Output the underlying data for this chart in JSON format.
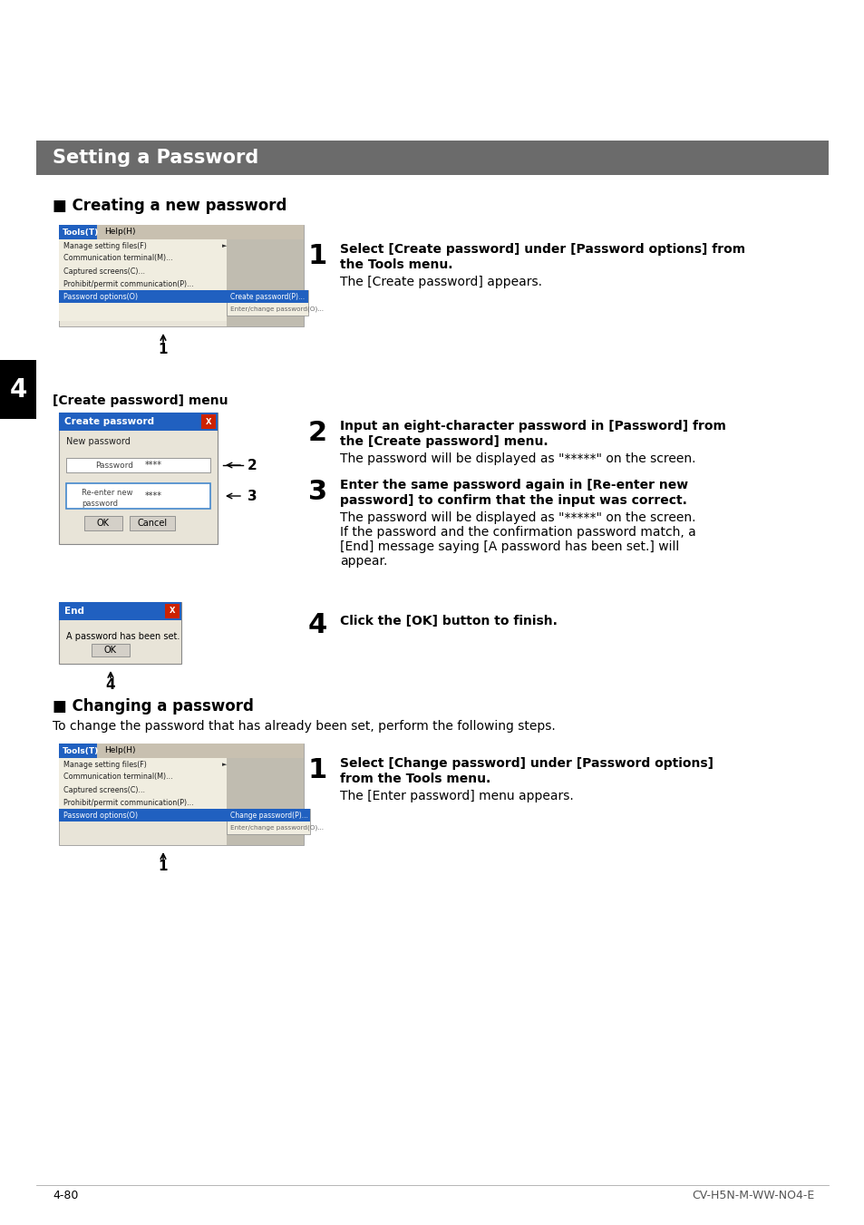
{
  "page_bg": "#ffffff",
  "header_bg": "#6b6b6b",
  "header_text": "Setting a Password",
  "header_text_color": "#ffffff",
  "section1_title": "■ Creating a new password",
  "section2_title": "■ Changing a password",
  "section2_subtitle": "To change the password that has already been set, perform the following steps.",
  "chapter_num": "4",
  "chapter_bg": "#000000",
  "chapter_text_color": "#ffffff",
  "footer_left": "4-80",
  "footer_right": "CV-H5N-M-WW-NO4-E",
  "step1_bold_line1": "Select [Create password] under [Password options] from",
  "step1_bold_line2": "the Tools menu.",
  "step1_normal": "The [Create password] appears.",
  "step2_bold_line1": "Input an eight-character password in [Password] from",
  "step2_bold_line2": "the [Create password] menu.",
  "step2_normal": "The password will be displayed as \"*****\" on the screen.",
  "step3_bold_line1": "Enter the same password again in [Re-enter new",
  "step3_bold_line2": "password] to confirm that the input was correct.",
  "step3_normal_line1": "The password will be displayed as \"*****\" on the screen.",
  "step3_normal_line2": "If the password and the confirmation password match, a",
  "step3_normal_line3": "[End] message saying [A password has been set.] will",
  "step3_normal_line4": "appear.",
  "step4_bold": "Click the [OK] button to finish.",
  "create_pw_menu_label": "[Create password] menu",
  "change_step1_bold_line1": "Select [Change password] under [Password options]",
  "change_step1_bold_line2": "from the Tools menu.",
  "change_step1_normal": "The [Enter password] menu appears.",
  "menu_bg": "#f0ede0",
  "menu_bar_bg": "#c8c0b0",
  "menu_blue": "#2060c0",
  "dialog_bg": "#e8e4d8",
  "title_blue": "#2060c0",
  "btn_bg": "#d4d0c8",
  "border_color": "#888888",
  "red_btn": "#cc2200",
  "input_border_blue": "#4488cc"
}
